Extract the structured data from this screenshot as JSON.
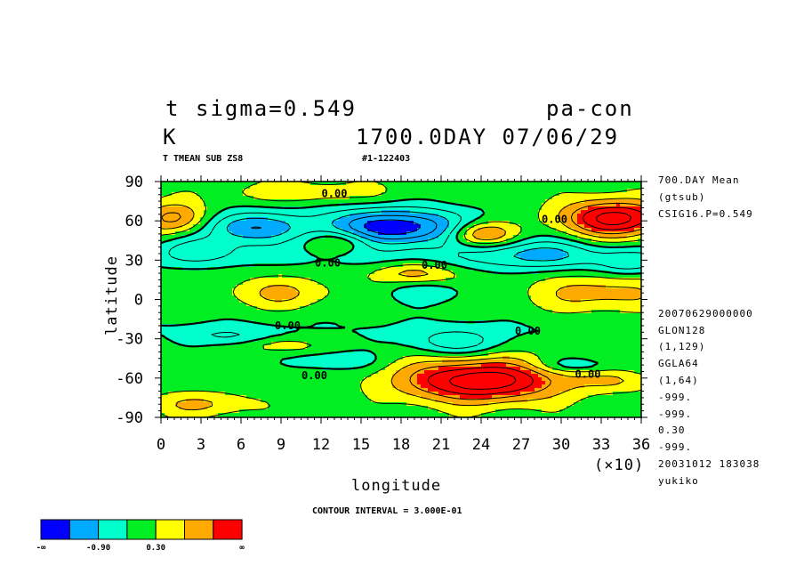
{
  "header": {
    "variable": "t",
    "level": "sigma=0.549",
    "model": "pa-con",
    "unit": "K",
    "time": "1700.0DAY 07/06/29",
    "subtitle": "T TMEAN SUB ZS8",
    "run_id": "#1-122403"
  },
  "side_info": [
    "700.DAY Mean",
    "(gtsub)",
    "CSIG16.P=0.549",
    "20070629000000",
    "GLON128",
    "(1,129)",
    "GGLA64",
    "(1,64)",
    "-999.",
    "-999.",
    "0.30",
    "-999.",
    "20031012 183038",
    "yukiko"
  ],
  "contour_interval": "CONTOUR INTERVAL = 3.000E-01",
  "legend": {
    "colors": [
      "#0000ff",
      "#00aaff",
      "#00ffcc",
      "#00ee22",
      "#ffff00",
      "#ffaa00",
      "#ff0000"
    ],
    "labels": [
      "-∞",
      "-0.90",
      "0.30",
      "∞"
    ]
  },
  "chart_data": {
    "type": "heatmap",
    "xlabel": "longitude",
    "ylabel": "latitude",
    "x_multiplier": "(×10)",
    "xlim": [
      0,
      36
    ],
    "ylim": [
      -90,
      90
    ],
    "x_ticks": [
      "0",
      "3",
      "6",
      "9",
      "12",
      "15",
      "18",
      "21",
      "24",
      "27",
      "30",
      "33",
      "36"
    ],
    "y_ticks": [
      "90",
      "60",
      "30",
      "0",
      "-30",
      "-60",
      "-90"
    ],
    "contour_labels": [
      "0.00",
      "0.00",
      "0.00",
      "0.00",
      "0.00",
      "0.00",
      "0.00",
      "0.00"
    ],
    "features": [
      {
        "kind": "low",
        "lon": 17.5,
        "lat": 55,
        "rx": 6,
        "ry": 14,
        "amp": -1.6
      },
      {
        "kind": "low",
        "lon": 6.5,
        "lat": 55,
        "rx": 3.5,
        "ry": 12,
        "amp": -1.0
      },
      {
        "kind": "low",
        "lon": 3,
        "lat": 38,
        "rx": 3,
        "ry": 10,
        "amp": -0.5
      },
      {
        "kind": "low",
        "lon": 28,
        "lat": 35,
        "rx": 5,
        "ry": 12,
        "amp": -0.7
      },
      {
        "kind": "low",
        "lon": 35,
        "lat": 27,
        "rx": 2.5,
        "ry": 10,
        "amp": -0.5
      },
      {
        "kind": "low",
        "lon": 22,
        "lat": -33,
        "rx": 3.5,
        "ry": 10,
        "amp": -0.6
      },
      {
        "kind": "low",
        "lon": 13,
        "lat": -47,
        "rx": 3,
        "ry": 7,
        "amp": -0.5
      },
      {
        "kind": "low",
        "lon": 5,
        "lat": -28,
        "rx": 3,
        "ry": 7,
        "amp": -0.4
      },
      {
        "kind": "low",
        "lon": 31,
        "lat": -50,
        "rx": 3,
        "ry": 6,
        "amp": -0.5
      },
      {
        "kind": "low",
        "lon": 20,
        "lat": 5,
        "rx": 3,
        "ry": 8,
        "amp": -0.4
      },
      {
        "kind": "high",
        "lon": 24,
        "lat": -62,
        "rx": 6,
        "ry": 16,
        "amp": 1.6
      },
      {
        "kind": "high",
        "lon": 34,
        "lat": 62,
        "rx": 4,
        "ry": 14,
        "amp": 1.5
      },
      {
        "kind": "high",
        "lon": 24,
        "lat": 50,
        "rx": 2.5,
        "ry": 10,
        "amp": 1.2
      },
      {
        "kind": "high",
        "lon": 1,
        "lat": 62,
        "rx": 2.5,
        "ry": 12,
        "amp": 0.9
      },
      {
        "kind": "high",
        "lon": 13.5,
        "lat": 45,
        "rx": 2.5,
        "ry": 9,
        "amp": 0.6
      },
      {
        "kind": "high",
        "lon": 19,
        "lat": 20,
        "rx": 3,
        "ry": 8,
        "amp": 0.6
      },
      {
        "kind": "high",
        "lon": 33,
        "lat": 5,
        "rx": 5,
        "ry": 15,
        "amp": 0.6
      },
      {
        "kind": "high",
        "lon": 9,
        "lat": 5,
        "rx": 4,
        "ry": 12,
        "amp": 0.5
      },
      {
        "kind": "high",
        "lon": 3,
        "lat": -80,
        "rx": 4,
        "ry": 9,
        "amp": 0.5
      },
      {
        "kind": "high",
        "lon": 9,
        "lat": -35,
        "rx": 2.5,
        "ry": 6,
        "amp": 0.4
      },
      {
        "kind": "high",
        "lon": 34,
        "lat": -62,
        "rx": 3,
        "ry": 8,
        "amp": 0.4
      },
      {
        "kind": "high",
        "lon": 11,
        "lat": 82,
        "rx": 6,
        "ry": 8,
        "amp": 0.4
      }
    ]
  }
}
